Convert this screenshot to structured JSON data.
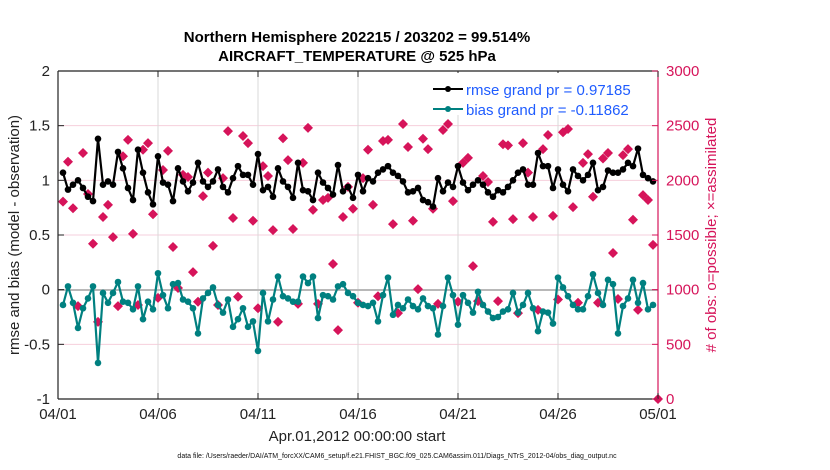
{
  "chart_data": {
    "type": "line",
    "title": [
      "Northern Hemisphere 202215 / 203202 = 99.514%",
      "AIRCRAFT_TEMPERATURE @ 525 hPa"
    ],
    "xlabel": "Apr.01,2012 00:00:00 start",
    "ylabel": "rmse and bias (model - observation)",
    "y2label": "# of obs: o=possible; ×=assimilated",
    "footer": "data file: /Users/raeder/DAI/ATM_forcXX/CAM6_setup/f.e21.FHIST_BGC.f09_025.CAM6assim.011/Diags_NTrS_2012-04/obs_diag_output.nc",
    "xlim_days": [
      0,
      30
    ],
    "x_tick_days": [
      0,
      5,
      10,
      15,
      20,
      25,
      30
    ],
    "x_tick_labels": [
      "04/01",
      "04/06",
      "04/11",
      "04/16",
      "04/21",
      "04/26",
      "05/01"
    ],
    "ylim": [
      -1,
      2
    ],
    "y_ticks": [
      2,
      1.5,
      1,
      0.5,
      0,
      -0.5,
      -1
    ],
    "y_tick_labels": [
      "2",
      "1.5",
      "1",
      "0.5",
      "0",
      "-0.5",
      "-1"
    ],
    "y2lim": [
      0,
      3000
    ],
    "y2_ticks": [
      3000,
      2500,
      2000,
      1500,
      1000,
      500,
      0
    ],
    "y2_tick_labels": [
      "3000",
      "2500",
      "2000",
      "1500",
      "1000",
      "500",
      "0"
    ],
    "grid": true,
    "legend_position": "top-right",
    "first_x_days": 0.25,
    "x_step_days": 0.25,
    "series": [
      {
        "name": "rmse grand pr = 0.97185",
        "color": "#000000",
        "values": [
          1.07,
          0.915,
          0.96,
          1.0,
          0.93,
          0.85,
          0.81,
          1.38,
          0.96,
          0.99,
          0.96,
          1.26,
          1.11,
          0.93,
          0.82,
          1.28,
          1.07,
          0.89,
          0.78,
          1.22,
          0.98,
          0.96,
          0.81,
          1.11,
          0.99,
          0.9,
          0.98,
          1.16,
          0.99,
          0.94,
          0.99,
          1.1,
          0.94,
          0.89,
          1.02,
          1.13,
          1.05,
          1.05,
          0.96,
          1.24,
          0.91,
          0.94,
          0.85,
          1.11,
          0.99,
          0.94,
          0.84,
          1.16,
          0.91,
          0.9,
          0.82,
          1.07,
          0.98,
          0.93,
          0.87,
          1.14,
          0.9,
          0.94,
          0.84,
          1.05,
          0.9,
          1.02,
          0.99,
          1.07,
          1.1,
          1.13,
          1.07,
          1.04,
          0.99,
          0.89,
          0.9,
          0.93,
          0.82,
          0.8,
          0.76,
          1.02,
          0.9,
          0.98,
          0.94,
          1.13,
          0.98,
          0.91,
          0.96,
          1.0,
          0.96,
          0.89,
          0.85,
          0.91,
          0.89,
          0.94,
          1.0,
          1.07,
          1.1,
          0.96,
          0.96,
          1.25,
          1.13,
          1.13,
          0.93,
          1.1,
          0.96,
          0.9,
          1.1,
          1.04,
          1.0,
          1.05,
          1.16,
          0.91,
          0.94,
          1.09,
          1.07,
          1.07,
          1.1,
          1.16,
          1.13,
          1.29,
          1.05,
          1.02,
          0.99,
          null
        ]
      },
      {
        "name": "bias grand pr = -0.11862",
        "color": "#008080",
        "values": [
          -0.14,
          0.03,
          -0.12,
          -0.35,
          -0.17,
          -0.08,
          0.03,
          -0.67,
          -0.03,
          -0.12,
          -0.03,
          0.07,
          -0.11,
          -0.12,
          -0.18,
          0.03,
          -0.27,
          -0.11,
          -0.18,
          0.15,
          -0.05,
          -0.17,
          0.05,
          0.06,
          -0.09,
          -0.11,
          -0.17,
          -0.4,
          -0.08,
          -0.03,
          0.02,
          -0.14,
          -0.21,
          -0.09,
          -0.34,
          -0.27,
          -0.17,
          -0.34,
          -0.29,
          -0.56,
          -0.03,
          -0.29,
          -0.09,
          0.12,
          -0.06,
          -0.08,
          -0.11,
          -0.11,
          0.12,
          0.06,
          0.12,
          -0.26,
          -0.05,
          -0.06,
          -0.09,
          0.03,
          0.05,
          -0.03,
          -0.06,
          -0.12,
          -0.14,
          -0.15,
          -0.12,
          -0.29,
          -0.05,
          0.11,
          -0.23,
          -0.14,
          -0.17,
          -0.09,
          -0.15,
          -0.18,
          -0.08,
          -0.15,
          -0.17,
          -0.41,
          -0.15,
          0.11,
          -0.05,
          -0.32,
          -0.05,
          -0.12,
          -0.21,
          -0.02,
          -0.14,
          -0.2,
          -0.26,
          -0.25,
          -0.2,
          -0.18,
          -0.03,
          -0.21,
          -0.14,
          -0.03,
          -0.17,
          -0.38,
          -0.2,
          -0.21,
          -0.31,
          0.11,
          0.02,
          -0.06,
          -0.14,
          -0.18,
          -0.18,
          -0.06,
          0.14,
          -0.03,
          -0.14,
          0.09,
          0.05,
          -0.4,
          -0.15,
          -0.08,
          0.09,
          -0.12,
          0.06,
          -0.18,
          -0.14,
          null
        ]
      },
      {
        "name": "# of obs",
        "color": "#d6145a",
        "axis": "right",
        "values": [
          1805,
          2170,
          1745,
          850,
          2250,
          1875,
          1420,
          705,
          1665,
          1775,
          1480,
          850,
          2220,
          2370,
          1510,
          860,
          2280,
          2340,
          1690,
          925,
          2095,
          2270,
          1390,
          1015,
          2050,
          2030,
          1160,
          890,
          1855,
          2070,
          1400,
          860,
          2020,
          2450,
          1655,
          935,
          2405,
          2340,
          1630,
          830,
          2130,
          2040,
          1545,
          705,
          2385,
          2185,
          1555,
          870,
          2160,
          2480,
          1730,
          870,
          1820,
          1840,
          1235,
          630,
          1665,
          1940,
          1740,
          880,
          2020,
          2280,
          1775,
          940,
          2360,
          2370,
          1600,
          785,
          2515,
          2305,
          1630,
          1005,
          2380,
          2285,
          1740,
          870,
          2460,
          2515,
          1810,
          890,
          2160,
          2205,
          1215,
          895,
          2040,
          1985,
          1620,
          895,
          2330,
          2320,
          1645,
          785,
          2340,
          2070,
          1665,
          815,
          2285,
          2415,
          1675,
          910,
          2440,
          2470,
          1755,
          880,
          2160,
          2240,
          1850,
          880,
          2200,
          2250,
          1335,
          915,
          2230,
          2285,
          1640,
          815,
          1865,
          1820,
          1410,
          0
        ]
      }
    ],
    "legend": [
      "rmse grand pr = 0.97185",
      "bias grand pr = -0.11862"
    ]
  }
}
